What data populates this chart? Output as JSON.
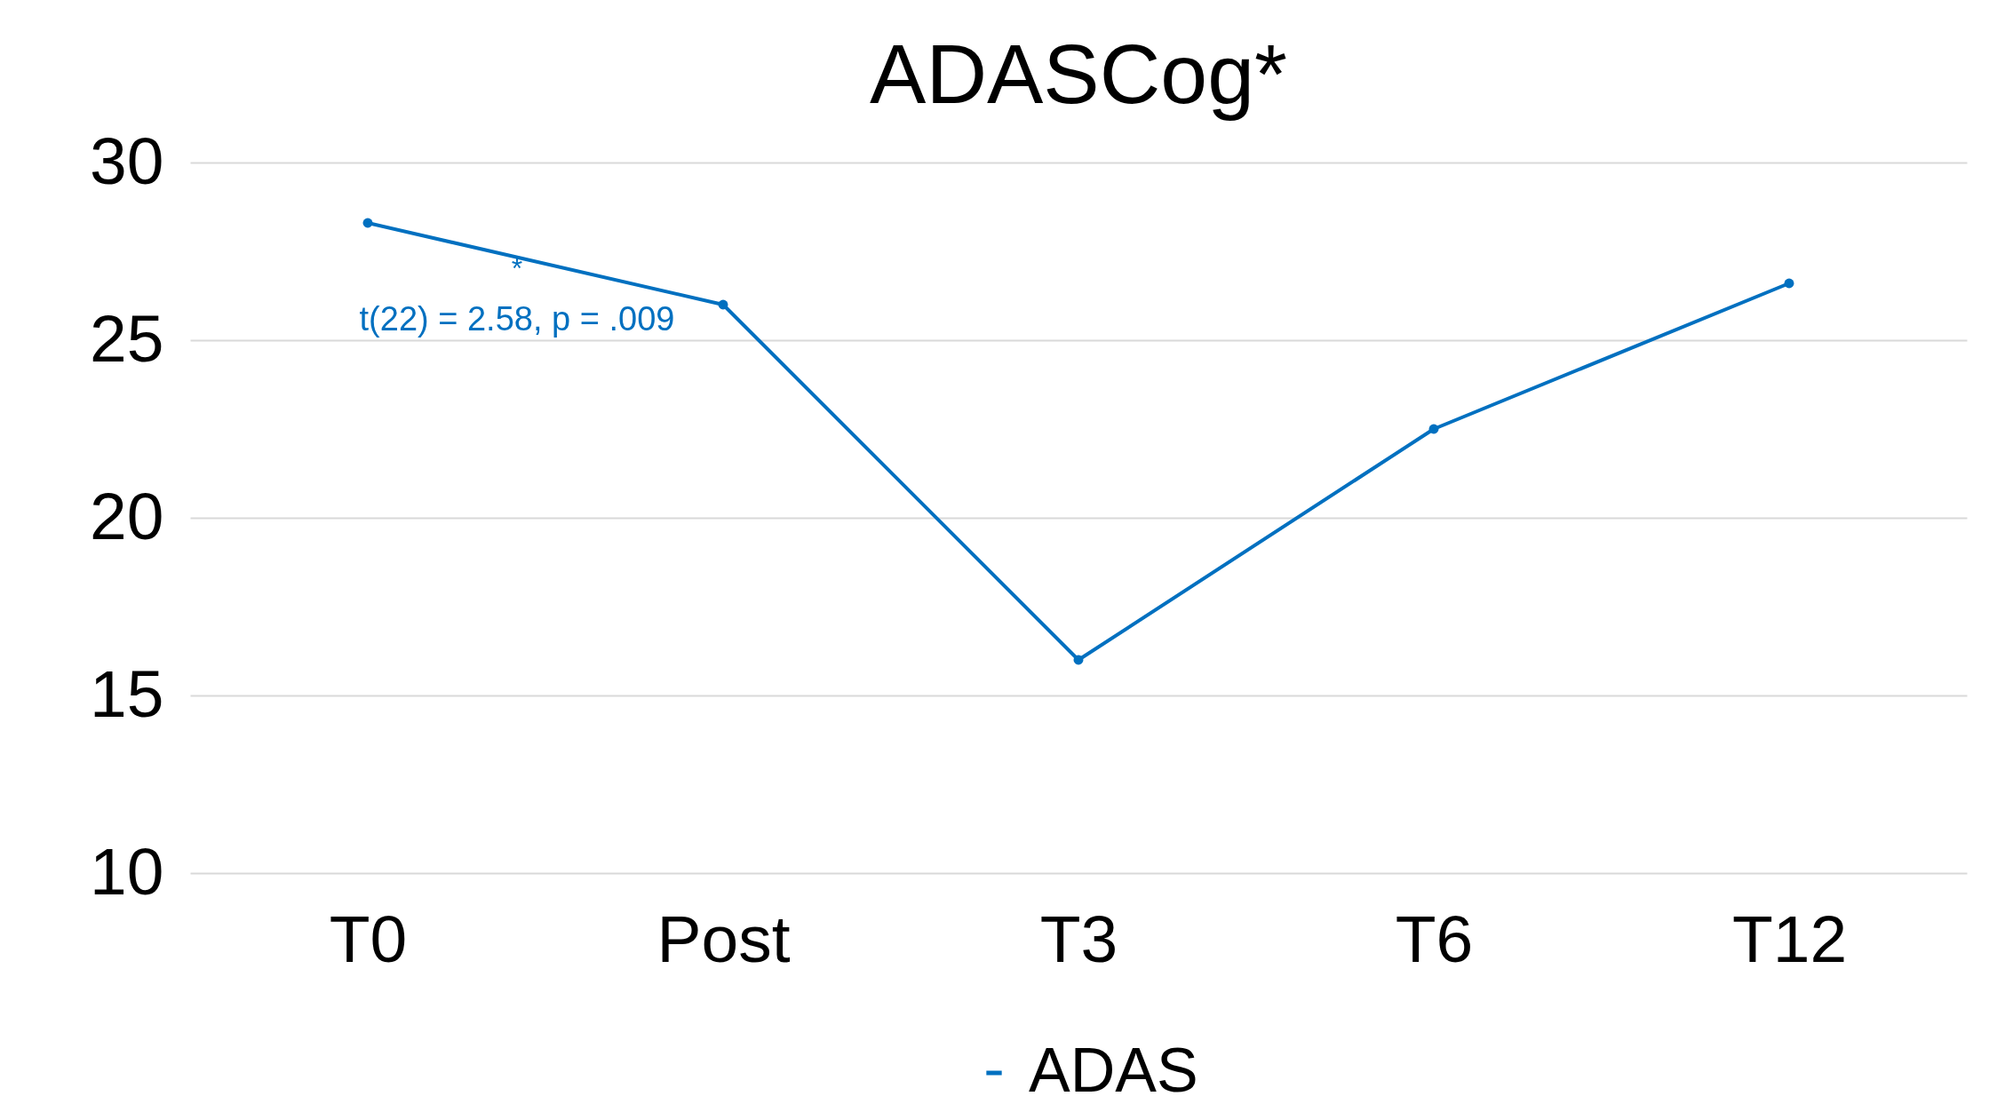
{
  "chart_data": {
    "type": "line",
    "title": "ADASCog*",
    "categories": [
      "T0",
      "Post",
      "T3",
      "T6",
      "T12"
    ],
    "series": [
      {
        "name": "ADAS",
        "color": "#0070c0",
        "values": [
          28.3,
          26.0,
          16.0,
          22.5,
          26.6
        ]
      }
    ],
    "ylim": [
      10,
      30
    ],
    "yticks": [
      10,
      15,
      20,
      25,
      30
    ],
    "grid": "y",
    "legend": "bottom",
    "marker": "circle",
    "line_style": "solid",
    "annotations": [
      "*",
      "t(22) = 2.58, p = .009"
    ]
  }
}
